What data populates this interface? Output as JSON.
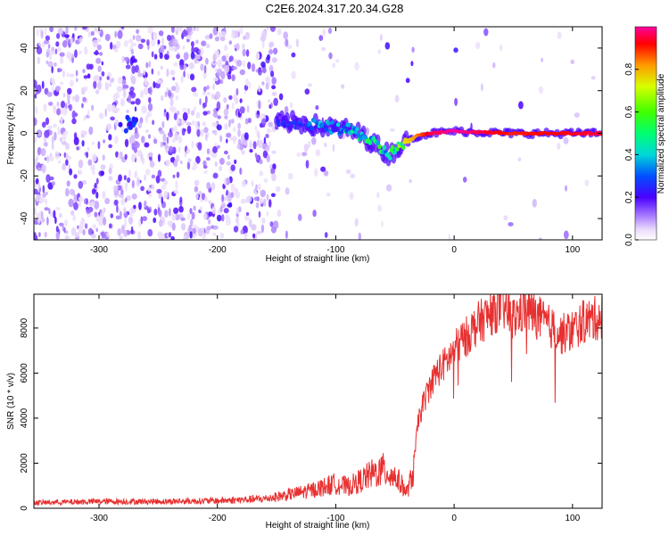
{
  "title": "C2E6.2024.317.20.34.G28",
  "chart_data": [
    {
      "type": "heatmap",
      "title": "C2E6.2024.317.20.34.G28",
      "xlabel": "Height of straight line (km)",
      "ylabel": "Frequency (Hz)",
      "xlim": [
        -355,
        125
      ],
      "ylim": [
        -50,
        50
      ],
      "xticks": [
        -300,
        -200,
        -100,
        0,
        100
      ],
      "xtick_labels": [
        "-300",
        "-200",
        "-100",
        "0",
        "100"
      ],
      "yticks": [
        -40,
        -20,
        0,
        20,
        40
      ],
      "ytick_labels": [
        "-40",
        "-20",
        "0",
        "20",
        "40"
      ],
      "colorbar": {
        "label": "Normalized spectral amplitude",
        "range": [
          0,
          1
        ],
        "ticks": [
          0.0,
          0.2,
          0.4,
          0.6,
          0.8
        ],
        "tick_labels": [
          "0.0",
          "0.2",
          "0.4",
          "0.6",
          "0.8"
        ]
      },
      "ridge": [
        {
          "x": -150,
          "y": 5,
          "amp": 0.22
        },
        {
          "x": -130,
          "y": 5,
          "amp": 0.25
        },
        {
          "x": -110,
          "y": 3,
          "amp": 0.35
        },
        {
          "x": -95,
          "y": 2,
          "amp": 0.4
        },
        {
          "x": -85,
          "y": 1,
          "amp": 0.45
        },
        {
          "x": -75,
          "y": -2,
          "amp": 0.48
        },
        {
          "x": -65,
          "y": -6,
          "amp": 0.5
        },
        {
          "x": -55,
          "y": -10,
          "amp": 0.45
        },
        {
          "x": -48,
          "y": -7,
          "amp": 0.6
        },
        {
          "x": -40,
          "y": -4,
          "amp": 0.75
        },
        {
          "x": -30,
          "y": -1,
          "amp": 0.85
        },
        {
          "x": -20,
          "y": 0,
          "amp": 0.95
        },
        {
          "x": 0,
          "y": 1,
          "amp": 1.0
        },
        {
          "x": 50,
          "y": 0,
          "amp": 0.9
        },
        {
          "x": 125,
          "y": 0,
          "amp": 0.95
        }
      ],
      "feature_at_x_minus_275": {
        "x": -275,
        "y": 4,
        "amp": 0.3
      }
    },
    {
      "type": "line",
      "xlabel": "Height of straight line (km)",
      "ylabel": "SNR (10 * v/v)",
      "xlim": [
        -355,
        125
      ],
      "ylim": [
        0,
        9500
      ],
      "xticks": [
        -300,
        -200,
        -100,
        0,
        100
      ],
      "xtick_labels": [
        "-300",
        "-200",
        "-100",
        "0",
        "100"
      ],
      "yticks": [
        0,
        2000,
        4000,
        6000,
        8000
      ],
      "ytick_labels": [
        "0",
        "2000",
        "4000",
        "6000",
        "8000"
      ],
      "color": "#e83030",
      "series": [
        {
          "name": "SNR",
          "x": [
            -355,
            -300,
            -250,
            -200,
            -160,
            -140,
            -120,
            -100,
            -90,
            -80,
            -70,
            -60,
            -50,
            -45,
            -40,
            -35,
            -30,
            -25,
            -20,
            -15,
            -10,
            -5,
            0,
            5,
            10,
            20,
            30,
            40,
            50,
            60,
            70,
            80,
            90,
            100,
            110,
            125
          ],
          "y": [
            250,
            300,
            300,
            330,
            420,
            600,
            800,
            1100,
            950,
            1200,
            1500,
            1700,
            1400,
            1100,
            700,
            1500,
            4000,
            4800,
            5500,
            6000,
            6300,
            6600,
            7000,
            7400,
            7600,
            8200,
            8600,
            9000,
            8400,
            8900,
            8500,
            8100,
            7700,
            7900,
            8300,
            8500
          ]
        }
      ]
    }
  ]
}
